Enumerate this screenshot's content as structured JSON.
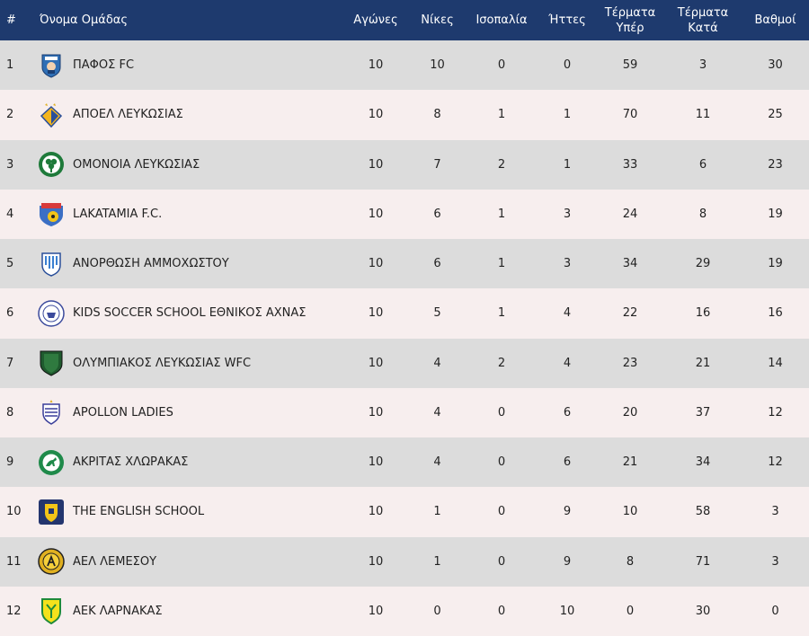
{
  "headers": {
    "pos": "#",
    "team": "Όνομα Ομάδας",
    "played": "Αγώνες",
    "wins": "Νίκες",
    "draws": "Ισοπαλία",
    "losses": "Ήττες",
    "gf": "Τέρματα Υπέρ",
    "ga": "Τέρματα Κατά",
    "pts": "Βαθμοί"
  },
  "colors": {
    "header_bg": "#1e3a6e",
    "row_odd": "#dcdcdc",
    "row_even": "#f7eeee"
  },
  "rows": [
    {
      "pos": "1",
      "team": "ΠΑΦΟΣ FC",
      "logo": "pafos-crest",
      "played": "10",
      "wins": "10",
      "draws": "0",
      "losses": "0",
      "gf": "59",
      "ga": "3",
      "pts": "30"
    },
    {
      "pos": "2",
      "team": "ΑΠΟΕΛ ΛΕΥΚΩΣΙΑΣ",
      "logo": "apoel-crest",
      "played": "10",
      "wins": "8",
      "draws": "1",
      "losses": "1",
      "gf": "70",
      "ga": "11",
      "pts": "25"
    },
    {
      "pos": "3",
      "team": "ΟΜΟΝΟΙΑ ΛΕΥΚΩΣΙΑΣ",
      "logo": "omonia-crest",
      "played": "10",
      "wins": "7",
      "draws": "2",
      "losses": "1",
      "gf": "33",
      "ga": "6",
      "pts": "23"
    },
    {
      "pos": "4",
      "team": "LAKATAMIA F.C.",
      "logo": "lakatamia-crest",
      "played": "10",
      "wins": "6",
      "draws": "1",
      "losses": "3",
      "gf": "24",
      "ga": "8",
      "pts": "19"
    },
    {
      "pos": "5",
      "team": "ΑΝΟΡΘΩΣΗ ΑΜΜΟΧΩΣΤΟΥ",
      "logo": "anorthosis-crest",
      "played": "10",
      "wins": "6",
      "draws": "1",
      "losses": "3",
      "gf": "34",
      "ga": "29",
      "pts": "19"
    },
    {
      "pos": "6",
      "team": "KIDS SOCCER SCHOOL ΕΘΝΙΚΟΣ ΑΧΝΑΣ",
      "logo": "ethnikos-crest",
      "played": "10",
      "wins": "5",
      "draws": "1",
      "losses": "4",
      "gf": "22",
      "ga": "16",
      "pts": "16"
    },
    {
      "pos": "7",
      "team": "ΟΛΥΜΠΙΑΚΟΣ ΛΕΥΚΩΣΙΑΣ WFC",
      "logo": "olympiakos-crest",
      "played": "10",
      "wins": "4",
      "draws": "2",
      "losses": "4",
      "gf": "23",
      "ga": "21",
      "pts": "14"
    },
    {
      "pos": "8",
      "team": "APOLLON LADIES",
      "logo": "apollon-crest",
      "played": "10",
      "wins": "4",
      "draws": "0",
      "losses": "6",
      "gf": "20",
      "ga": "37",
      "pts": "12"
    },
    {
      "pos": "9",
      "team": "ΑΚΡΙΤΑΣ ΧΛΩΡΑΚΑΣ",
      "logo": "akritas-crest",
      "played": "10",
      "wins": "4",
      "draws": "0",
      "losses": "6",
      "gf": "21",
      "ga": "34",
      "pts": "12"
    },
    {
      "pos": "10",
      "team": "THE ENGLISH SCHOOL",
      "logo": "english-school-crest",
      "played": "10",
      "wins": "1",
      "draws": "0",
      "losses": "9",
      "gf": "10",
      "ga": "58",
      "pts": "3"
    },
    {
      "pos": "11",
      "team": "ΑΕΛ ΛΕΜΕΣΟΥ",
      "logo": "ael-crest",
      "played": "10",
      "wins": "1",
      "draws": "0",
      "losses": "9",
      "gf": "8",
      "ga": "71",
      "pts": "3"
    },
    {
      "pos": "12",
      "team": "ΑΕΚ ΛΑΡΝΑΚΑΣ",
      "logo": "aek-crest",
      "played": "10",
      "wins": "0",
      "draws": "0",
      "losses": "10",
      "gf": "0",
      "ga": "30",
      "pts": "0"
    }
  ]
}
